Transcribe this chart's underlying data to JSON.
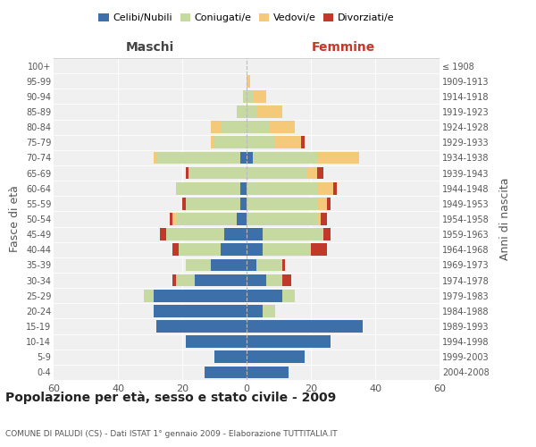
{
  "age_groups": [
    "0-4",
    "5-9",
    "10-14",
    "15-19",
    "20-24",
    "25-29",
    "30-34",
    "35-39",
    "40-44",
    "45-49",
    "50-54",
    "55-59",
    "60-64",
    "65-69",
    "70-74",
    "75-79",
    "80-84",
    "85-89",
    "90-94",
    "95-99",
    "100+"
  ],
  "birth_years": [
    "2004-2008",
    "1999-2003",
    "1994-1998",
    "1989-1993",
    "1984-1988",
    "1979-1983",
    "1974-1978",
    "1969-1973",
    "1964-1968",
    "1959-1963",
    "1954-1958",
    "1949-1953",
    "1944-1948",
    "1939-1943",
    "1934-1938",
    "1929-1933",
    "1924-1928",
    "1919-1923",
    "1914-1918",
    "1909-1913",
    "≤ 1908"
  ],
  "maschi": {
    "celibi": [
      13,
      10,
      19,
      28,
      29,
      29,
      16,
      11,
      8,
      7,
      3,
      2,
      2,
      0,
      2,
      0,
      0,
      0,
      0,
      0,
      0
    ],
    "coniugati": [
      0,
      0,
      0,
      0,
      0,
      3,
      6,
      8,
      13,
      18,
      19,
      17,
      20,
      18,
      26,
      10,
      8,
      3,
      1,
      0,
      0
    ],
    "vedovi": [
      0,
      0,
      0,
      0,
      0,
      0,
      0,
      0,
      0,
      0,
      1,
      0,
      0,
      0,
      1,
      1,
      3,
      0,
      0,
      0,
      0
    ],
    "divorziati": [
      0,
      0,
      0,
      0,
      0,
      0,
      1,
      0,
      2,
      2,
      1,
      1,
      0,
      1,
      0,
      0,
      0,
      0,
      0,
      0,
      0
    ]
  },
  "femmine": {
    "nubili": [
      13,
      18,
      26,
      36,
      5,
      11,
      6,
      3,
      5,
      5,
      0,
      0,
      0,
      0,
      2,
      0,
      0,
      0,
      0,
      0,
      0
    ],
    "coniugate": [
      0,
      0,
      0,
      0,
      4,
      4,
      5,
      8,
      15,
      19,
      22,
      22,
      22,
      19,
      20,
      9,
      7,
      3,
      2,
      0,
      0
    ],
    "vedove": [
      0,
      0,
      0,
      0,
      0,
      0,
      0,
      0,
      0,
      0,
      1,
      3,
      5,
      3,
      13,
      8,
      8,
      8,
      4,
      1,
      0
    ],
    "divorziate": [
      0,
      0,
      0,
      0,
      0,
      0,
      3,
      1,
      5,
      2,
      2,
      1,
      1,
      2,
      0,
      1,
      0,
      0,
      0,
      0,
      0
    ]
  },
  "colors": {
    "celibi_nubili": "#3d6fa8",
    "coniugati": "#c5d9a0",
    "vedovi": "#f5c97a",
    "divorziati": "#c0392b"
  },
  "xlim": 60,
  "title": "Popolazione per età, sesso e stato civile - 2009",
  "subtitle": "COMUNE DI PALUDI (CS) - Dati ISTAT 1° gennaio 2009 - Elaborazione TUTTITALIA.IT",
  "ylabel_left": "Fasce di età",
  "ylabel_right": "Anni di nascita",
  "xlabel_left": "Maschi",
  "xlabel_right": "Femmine",
  "legend_labels": [
    "Celibi/Nubili",
    "Coniugati/e",
    "Vedovi/e",
    "Divorziati/e"
  ],
  "background_color": "#f0f0f0"
}
